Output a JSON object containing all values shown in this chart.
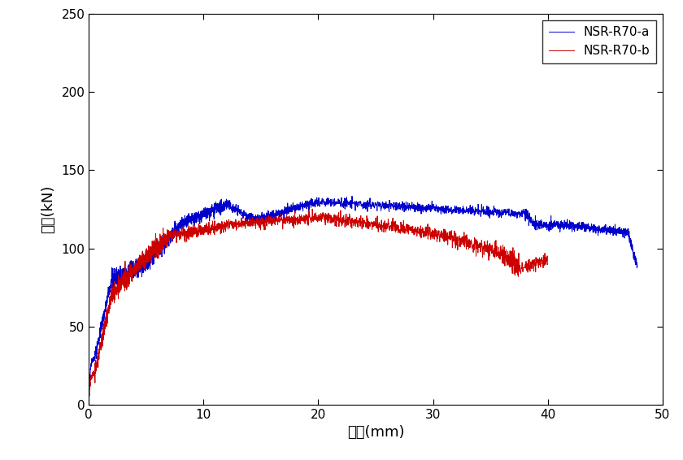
{
  "title": "",
  "xlabel": "변위(mm)",
  "ylabel": "하중(kN)",
  "xlim": [
    0,
    50
  ],
  "ylim": [
    0,
    250
  ],
  "xticks": [
    0,
    10,
    20,
    30,
    40,
    50
  ],
  "yticks": [
    0,
    50,
    100,
    150,
    200,
    250
  ],
  "line_a_color": "#0000CC",
  "line_b_color": "#CC0000",
  "legend_a": "NSR-R70-a",
  "legend_b": "NSR-R70-b",
  "background_color": "#ffffff",
  "figsize": [
    8.4,
    5.66
  ],
  "dpi": 100
}
